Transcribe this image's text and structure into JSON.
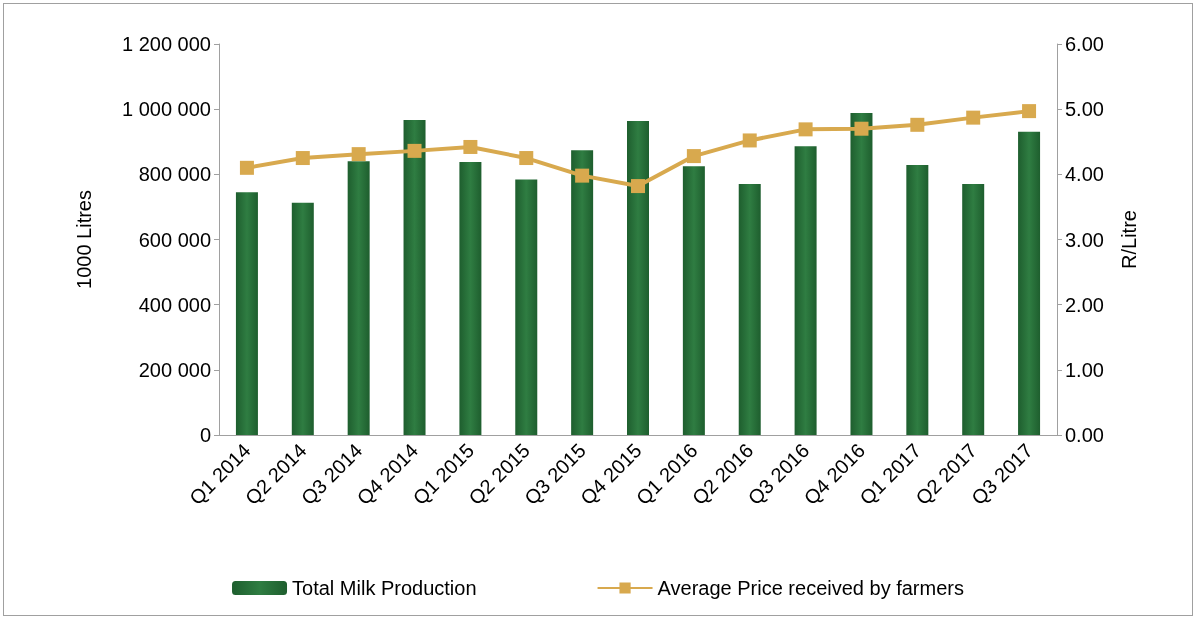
{
  "chart_data": {
    "type": "bar",
    "ylabel": "1000 Litres",
    "y2label": "R/Litre",
    "categories": [
      "Q1 2014",
      "Q2 2014",
      "Q3 2014",
      "Q4 2014",
      "Q1 2015",
      "Q2 2015",
      "Q3 2015",
      "Q4 2015",
      "Q1 2016",
      "Q2 2016",
      "Q3 2016",
      "Q4 2016",
      "Q1 2017",
      "Q2 2017",
      "Q3 2017"
    ],
    "series": [
      {
        "name": "Total Milk Production",
        "color": "#1e5e2e",
        "values": [
          745000,
          713000,
          840000,
          967000,
          838000,
          784000,
          874000,
          964000,
          825000,
          770000,
          886000,
          988000,
          829000,
          770000,
          931000
        ]
      },
      {
        "name": "Average Price received by farmers",
        "type": "line",
        "axis": "y2",
        "color": "#d8a94e",
        "values": [
          4.1,
          4.25,
          4.31,
          4.36,
          4.42,
          4.25,
          3.98,
          3.82,
          4.28,
          4.52,
          4.69,
          4.7,
          4.76,
          4.87,
          4.97
        ]
      }
    ],
    "ylim": [
      0,
      1200000
    ],
    "yticks": [
      0,
      {
        "value": 200000,
        "label": "200 000"
      },
      {
        "value": 400000,
        "label": "400 000"
      },
      {
        "value": 600000,
        "label": "600 000"
      },
      {
        "value": 800000,
        "label": "800 000"
      },
      {
        "value": 1000000,
        "label": "1 000 000"
      },
      {
        "value": 1200000,
        "label": "1 200 000"
      }
    ],
    "y2lim": [
      0,
      6
    ],
    "y2ticks": [
      {
        "value": 0,
        "label": "0.00"
      },
      {
        "value": 1,
        "label": "1.00"
      },
      {
        "value": 2,
        "label": "2.00"
      },
      {
        "value": 3,
        "label": "3.00"
      },
      {
        "value": 4,
        "label": "4.00"
      },
      {
        "value": 5,
        "label": "5.00"
      },
      {
        "value": 6,
        "label": "6.00"
      }
    ],
    "marker": "square",
    "grid": false,
    "legend": "bottom"
  }
}
